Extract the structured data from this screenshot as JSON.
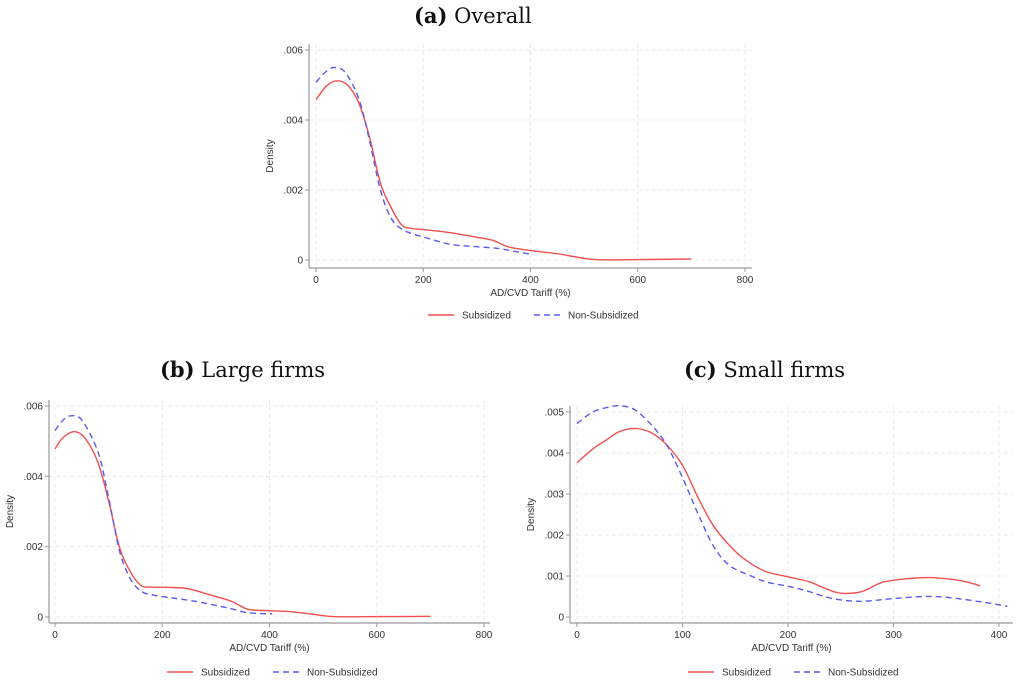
{
  "figure": {
    "legend": {
      "subsidized": "Subsidized",
      "non_subsidized": "Non-Subsidized"
    },
    "colors": {
      "subsidized": "#f0504f",
      "non_subsidized": "#5a5af0",
      "axis": "#999999",
      "grid": "#e6e6e6"
    }
  },
  "chart_data": [
    {
      "id": "a",
      "type": "line",
      "title_prefix": "(a)",
      "title": "Overall",
      "xlabel": "AD/CVD Tariff (%)",
      "ylabel": "Density",
      "xlim": [
        0,
        800
      ],
      "ylim": [
        0,
        0.006
      ],
      "xticks": [
        0,
        200,
        400,
        600,
        800
      ],
      "yticks": [
        0,
        0.002,
        0.004,
        0.006
      ],
      "ytick_labels": [
        "0",
        ".002",
        ".004",
        ".006"
      ],
      "grid": true,
      "legend_position": "bottom",
      "series": [
        {
          "name": "Subsidized",
          "style": "solid",
          "points": [
            [
              0,
              0.00458
            ],
            [
              20,
              0.00498
            ],
            [
              40,
              0.00512
            ],
            [
              60,
              0.00498
            ],
            [
              80,
              0.00448
            ],
            [
              100,
              0.0035
            ],
            [
              120,
              0.0022
            ],
            [
              140,
              0.0015
            ],
            [
              160,
              0.001
            ],
            [
              180,
              0.0009
            ],
            [
              200,
              0.00087
            ],
            [
              250,
              0.00078
            ],
            [
              300,
              0.00065
            ],
            [
              330,
              0.00056
            ],
            [
              360,
              0.00037
            ],
            [
              400,
              0.00027
            ],
            [
              450,
              0.00018
            ],
            [
              480,
              0.0001
            ],
            [
              520,
              1e-05
            ],
            [
              600,
              1e-05
            ],
            [
              700,
              3e-05
            ]
          ]
        },
        {
          "name": "Non-Subsidized",
          "style": "dashed",
          "points": [
            [
              0,
              0.00508
            ],
            [
              20,
              0.0054
            ],
            [
              35,
              0.0055
            ],
            [
              55,
              0.00535
            ],
            [
              80,
              0.0046
            ],
            [
              100,
              0.0034
            ],
            [
              120,
              0.002
            ],
            [
              140,
              0.0012
            ],
            [
              160,
              0.00088
            ],
            [
              180,
              0.00075
            ],
            [
              200,
              0.00066
            ],
            [
              250,
              0.00045
            ],
            [
              300,
              0.00038
            ],
            [
              340,
              0.00033
            ],
            [
              370,
              0.00025
            ],
            [
              405,
              0.00015
            ]
          ]
        }
      ]
    },
    {
      "id": "b",
      "type": "line",
      "title_prefix": "(b)",
      "title": "Large firms",
      "xlabel": "AD/CVD Tariff (%)",
      "ylabel": "Density",
      "xlim": [
        0,
        800
      ],
      "ylim": [
        0,
        0.006
      ],
      "xticks": [
        0,
        200,
        400,
        600,
        800
      ],
      "yticks": [
        0,
        0.002,
        0.004,
        0.006
      ],
      "ytick_labels": [
        "0",
        ".002",
        ".004",
        ".006"
      ],
      "grid": true,
      "legend_position": "bottom",
      "series": [
        {
          "name": "Subsidized",
          "style": "solid",
          "points": [
            [
              0,
              0.00478
            ],
            [
              15,
              0.0051
            ],
            [
              35,
              0.00527
            ],
            [
              55,
              0.0051
            ],
            [
              80,
              0.0044
            ],
            [
              100,
              0.0033
            ],
            [
              120,
              0.002
            ],
            [
              140,
              0.0013
            ],
            [
              160,
              0.0009
            ],
            [
              180,
              0.00085
            ],
            [
              220,
              0.00084
            ],
            [
              250,
              0.0008
            ],
            [
              300,
              0.00058
            ],
            [
              330,
              0.00044
            ],
            [
              360,
              0.00022
            ],
            [
              400,
              0.00018
            ],
            [
              440,
              0.00015
            ],
            [
              480,
              8e-05
            ],
            [
              520,
              1e-05
            ],
            [
              600,
              1e-05
            ],
            [
              700,
              2e-05
            ]
          ]
        },
        {
          "name": "Non-Subsidized",
          "style": "dashed",
          "points": [
            [
              0,
              0.0053
            ],
            [
              15,
              0.0056
            ],
            [
              30,
              0.00572
            ],
            [
              50,
              0.0056
            ],
            [
              80,
              0.0047
            ],
            [
              100,
              0.0034
            ],
            [
              120,
              0.0019
            ],
            [
              140,
              0.0011
            ],
            [
              160,
              0.00074
            ],
            [
              180,
              0.00063
            ],
            [
              220,
              0.00054
            ],
            [
              260,
              0.00045
            ],
            [
              300,
              0.00033
            ],
            [
              330,
              0.00023
            ],
            [
              360,
              0.00012
            ],
            [
              405,
              9e-05
            ]
          ]
        }
      ]
    },
    {
      "id": "c",
      "type": "line",
      "title_prefix": "(c)",
      "title": "Small firms",
      "xlabel": "AD/CVD Tariff (%)",
      "ylabel": "Density",
      "xlim": [
        0,
        410
      ],
      "ylim": [
        0,
        0.0052
      ],
      "xticks": [
        0,
        100,
        200,
        300,
        400
      ],
      "yticks": [
        0,
        0.001,
        0.002,
        0.003,
        0.004,
        0.005
      ],
      "ytick_labels": [
        "0",
        ".001",
        ".002",
        ".003",
        ".004",
        ".005"
      ],
      "grid": true,
      "legend_position": "bottom",
      "series": [
        {
          "name": "Subsidized",
          "style": "solid",
          "points": [
            [
              0,
              0.00376
            ],
            [
              15,
              0.0041
            ],
            [
              28,
              0.00432
            ],
            [
              40,
              0.00452
            ],
            [
              55,
              0.0046
            ],
            [
              70,
              0.0045
            ],
            [
              85,
              0.0042
            ],
            [
              100,
              0.0037
            ],
            [
              115,
              0.0029
            ],
            [
              130,
              0.0022
            ],
            [
              150,
              0.0016
            ],
            [
              165,
              0.0013
            ],
            [
              180,
              0.0011
            ],
            [
              200,
              0.00098
            ],
            [
              220,
              0.00086
            ],
            [
              235,
              0.0007
            ],
            [
              250,
              0.00058
            ],
            [
              270,
              0.00062
            ],
            [
              290,
              0.00085
            ],
            [
              315,
              0.00094
            ],
            [
              335,
              0.00096
            ],
            [
              355,
              0.00092
            ],
            [
              370,
              0.00085
            ],
            [
              382,
              0.00076
            ]
          ]
        },
        {
          "name": "Non-Subsidized",
          "style": "dashed",
          "points": [
            [
              0,
              0.00472
            ],
            [
              15,
              0.005
            ],
            [
              30,
              0.00512
            ],
            [
              42,
              0.00515
            ],
            [
              55,
              0.00505
            ],
            [
              70,
              0.0047
            ],
            [
              85,
              0.0042
            ],
            [
              100,
              0.0034
            ],
            [
              115,
              0.0025
            ],
            [
              130,
              0.0017
            ],
            [
              145,
              0.00125
            ],
            [
              165,
              0.001
            ],
            [
              180,
              0.00085
            ],
            [
              200,
              0.00075
            ],
            [
              220,
              0.00062
            ],
            [
              240,
              0.00046
            ],
            [
              260,
              0.00039
            ],
            [
              275,
              0.00039
            ],
            [
              300,
              0.00045
            ],
            [
              330,
              0.0005
            ],
            [
              350,
              0.00048
            ],
            [
              375,
              0.0004
            ],
            [
              395,
              0.00032
            ],
            [
              408,
              0.00026
            ]
          ]
        }
      ]
    }
  ]
}
